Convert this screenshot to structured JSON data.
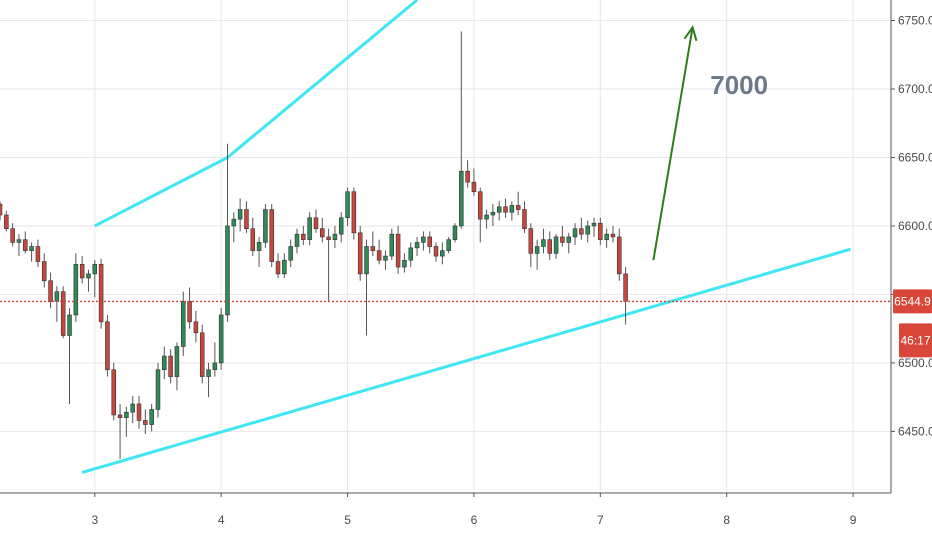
{
  "chart_data": {
    "type": "candlestick",
    "y_ticks": [
      {
        "value": 6450,
        "label": "6450.0"
      },
      {
        "value": 6500,
        "label": "6500.0"
      },
      {
        "value": 6550,
        "label": "6550.0"
      },
      {
        "value": 6600,
        "label": "6600.0"
      },
      {
        "value": 6650,
        "label": "6650.0"
      },
      {
        "value": 6700,
        "label": "6700.0"
      },
      {
        "value": 6750,
        "label": "6750.0"
      }
    ],
    "x_ticks": [
      {
        "value": 3,
        "label": "3"
      },
      {
        "value": 4,
        "label": "4"
      },
      {
        "value": 5,
        "label": "5"
      },
      {
        "value": 6,
        "label": "6"
      },
      {
        "value": 7,
        "label": "7"
      },
      {
        "value": 8,
        "label": "8"
      },
      {
        "value": 9,
        "label": "9"
      }
    ],
    "xlim": [
      2.25,
      9.3
    ],
    "ylim": [
      6405,
      6765
    ],
    "last_price": {
      "value": 6544.9,
      "label": "6544.9"
    },
    "countdown_label": "46:17",
    "annotation": {
      "text": "7000"
    },
    "trendlines": [
      {
        "name": "upper",
        "x1": 3.0,
        "y1": 6600,
        "x2": 4.05,
        "y2": 6650
      },
      {
        "name": "upper-b",
        "x1": 4.05,
        "y1": 6650,
        "x2": 5.55,
        "y2": 6765
      },
      {
        "name": "lower",
        "x1": 2.9,
        "y1": 6420,
        "x2": 8.98,
        "y2": 6583
      }
    ],
    "arrow": {
      "x1": 7.42,
      "y1": 6575,
      "x2": 7.73,
      "y2": 6745
    },
    "candles": [
      [
        2.25,
        6616,
        6618,
        6604,
        6608
      ],
      [
        2.3,
        6608,
        6611,
        6596,
        6598
      ],
      [
        2.35,
        6598,
        6602,
        6585,
        6588
      ],
      [
        2.4,
        6588,
        6594,
        6578,
        6590
      ],
      [
        2.45,
        6590,
        6596,
        6580,
        6582
      ],
      [
        2.5,
        6582,
        6588,
        6574,
        6585
      ],
      [
        2.55,
        6585,
        6590,
        6570,
        6574
      ],
      [
        2.6,
        6574,
        6580,
        6555,
        6560
      ],
      [
        2.65,
        6560,
        6566,
        6540,
        6545
      ],
      [
        2.7,
        6545,
        6556,
        6530,
        6552
      ],
      [
        2.75,
        6552,
        6556,
        6518,
        6520
      ],
      [
        2.8,
        6520,
        6540,
        6470,
        6535
      ],
      [
        2.85,
        6535,
        6580,
        6530,
        6572
      ],
      [
        2.9,
        6572,
        6578,
        6558,
        6562
      ],
      [
        2.95,
        6562,
        6568,
        6552,
        6565
      ],
      [
        3.0,
        6565,
        6575,
        6548,
        6572
      ],
      [
        3.05,
        6572,
        6576,
        6525,
        6530
      ],
      [
        3.1,
        6530,
        6535,
        6490,
        6495
      ],
      [
        3.15,
        6495,
        6500,
        6458,
        6462
      ],
      [
        3.2,
        6462,
        6470,
        6430,
        6460
      ],
      [
        3.25,
        6460,
        6468,
        6446,
        6464
      ],
      [
        3.3,
        6464,
        6476,
        6456,
        6470
      ],
      [
        3.35,
        6470,
        6476,
        6452,
        6458
      ],
      [
        3.4,
        6458,
        6466,
        6448,
        6455
      ],
      [
        3.45,
        6455,
        6470,
        6450,
        6466
      ],
      [
        3.5,
        6466,
        6500,
        6460,
        6495
      ],
      [
        3.55,
        6495,
        6512,
        6488,
        6505
      ],
      [
        3.6,
        6505,
        6510,
        6485,
        6490
      ],
      [
        3.65,
        6490,
        6515,
        6480,
        6512
      ],
      [
        3.7,
        6512,
        6552,
        6505,
        6545
      ],
      [
        3.75,
        6545,
        6555,
        6525,
        6530
      ],
      [
        3.8,
        6530,
        6538,
        6515,
        6522
      ],
      [
        3.85,
        6522,
        6528,
        6485,
        6490
      ],
      [
        3.9,
        6490,
        6500,
        6475,
        6495
      ],
      [
        3.95,
        6495,
        6515,
        6490,
        6500
      ],
      [
        4.0,
        6500,
        6540,
        6495,
        6535
      ],
      [
        4.05,
        6535,
        6660,
        6530,
        6600
      ],
      [
        4.1,
        6600,
        6610,
        6588,
        6605
      ],
      [
        4.15,
        6605,
        6620,
        6596,
        6612
      ],
      [
        4.2,
        6612,
        6618,
        6595,
        6598
      ],
      [
        4.25,
        6598,
        6606,
        6578,
        6582
      ],
      [
        4.3,
        6582,
        6592,
        6570,
        6588
      ],
      [
        4.35,
        6588,
        6616,
        6584,
        6612
      ],
      [
        4.4,
        6612,
        6616,
        6570,
        6574
      ],
      [
        4.45,
        6574,
        6580,
        6562,
        6565
      ],
      [
        4.5,
        6565,
        6580,
        6562,
        6575
      ],
      [
        4.55,
        6575,
        6590,
        6570,
        6585
      ],
      [
        4.6,
        6585,
        6598,
        6580,
        6594
      ],
      [
        4.65,
        6594,
        6600,
        6586,
        6590
      ],
      [
        4.7,
        6590,
        6610,
        6586,
        6606
      ],
      [
        4.75,
        6606,
        6612,
        6595,
        6598
      ],
      [
        4.8,
        6598,
        6606,
        6588,
        6592
      ],
      [
        4.85,
        6592,
        6598,
        6545,
        6590
      ],
      [
        4.9,
        6590,
        6600,
        6584,
        6594
      ],
      [
        4.95,
        6594,
        6610,
        6588,
        6606
      ],
      [
        5.0,
        6606,
        6628,
        6600,
        6625
      ],
      [
        5.05,
        6625,
        6628,
        6590,
        6595
      ],
      [
        5.1,
        6595,
        6600,
        6560,
        6565
      ],
      [
        5.15,
        6565,
        6590,
        6520,
        6585
      ],
      [
        5.2,
        6585,
        6596,
        6578,
        6582
      ],
      [
        5.25,
        6582,
        6590,
        6572,
        6575
      ],
      [
        5.3,
        6575,
        6582,
        6568,
        6578
      ],
      [
        5.35,
        6578,
        6598,
        6575,
        6594
      ],
      [
        5.4,
        6594,
        6600,
        6565,
        6570
      ],
      [
        5.45,
        6570,
        6580,
        6566,
        6575
      ],
      [
        5.5,
        6575,
        6588,
        6570,
        6584
      ],
      [
        5.55,
        6584,
        6592,
        6578,
        6588
      ],
      [
        5.6,
        6588,
        6596,
        6582,
        6592
      ],
      [
        5.65,
        6592,
        6596,
        6580,
        6585
      ],
      [
        5.7,
        6585,
        6588,
        6574,
        6578
      ],
      [
        5.75,
        6578,
        6588,
        6572,
        6582
      ],
      [
        5.8,
        6582,
        6592,
        6580,
        6590
      ],
      [
        5.85,
        6590,
        6602,
        6588,
        6600
      ],
      [
        5.9,
        6600,
        6742,
        6598,
        6640
      ],
      [
        5.95,
        6640,
        6648,
        6628,
        6632
      ],
      [
        6.0,
        6632,
        6642,
        6622,
        6625
      ],
      [
        6.05,
        6625,
        6628,
        6588,
        6605
      ],
      [
        6.1,
        6605,
        6612,
        6598,
        6608
      ],
      [
        6.15,
        6608,
        6616,
        6600,
        6610
      ],
      [
        6.2,
        6610,
        6618,
        6604,
        6614
      ],
      [
        6.25,
        6614,
        6620,
        6606,
        6610
      ],
      [
        6.3,
        6610,
        6618,
        6604,
        6615
      ],
      [
        6.35,
        6615,
        6625,
        6608,
        6612
      ],
      [
        6.4,
        6612,
        6618,
        6595,
        6598
      ],
      [
        6.45,
        6598,
        6602,
        6570,
        6580
      ],
      [
        6.5,
        6580,
        6590,
        6568,
        6585
      ],
      [
        6.55,
        6585,
        6598,
        6580,
        6590
      ],
      [
        6.6,
        6590,
        6596,
        6575,
        6580
      ],
      [
        6.65,
        6580,
        6594,
        6576,
        6592
      ],
      [
        6.7,
        6592,
        6600,
        6585,
        6588
      ],
      [
        6.75,
        6588,
        6595,
        6580,
        6592
      ],
      [
        6.8,
        6592,
        6602,
        6586,
        6598
      ],
      [
        6.85,
        6598,
        6606,
        6590,
        6594
      ],
      [
        6.9,
        6594,
        6604,
        6588,
        6600
      ],
      [
        6.95,
        6600,
        6606,
        6592,
        6602
      ],
      [
        7.0,
        6602,
        6606,
        6586,
        6590
      ],
      [
        7.05,
        6590,
        6598,
        6584,
        6594
      ],
      [
        7.1,
        6594,
        6600,
        6588,
        6592
      ],
      [
        7.15,
        6592,
        6598,
        6560,
        6565
      ],
      [
        7.2,
        6565,
        6570,
        6528,
        6545
      ]
    ]
  }
}
